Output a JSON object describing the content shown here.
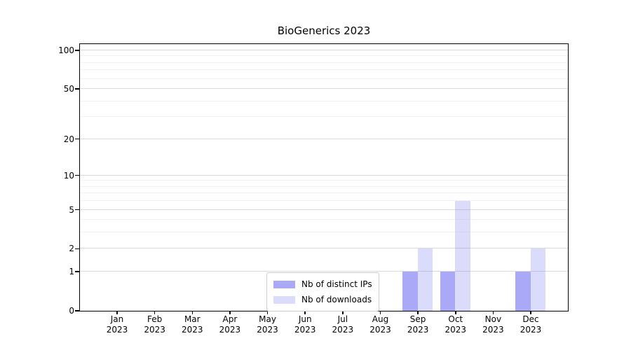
{
  "title": "BioGenerics 2023",
  "chart_data": {
    "type": "bar",
    "title": "BioGenerics 2023",
    "categories": [
      "Jan",
      "Feb",
      "Mar",
      "Apr",
      "May",
      "Jun",
      "Jul",
      "Aug",
      "Sep",
      "Oct",
      "Nov",
      "Dec"
    ],
    "year_label": "2023",
    "series": [
      {
        "name": "Nb of distinct IPs",
        "color": "rgba(102,102,240,0.56)",
        "values": [
          0,
          0,
          0,
          0,
          0,
          0,
          0,
          0,
          1,
          1,
          0,
          1
        ]
      },
      {
        "name": "Nb of downloads",
        "color": "rgba(102,102,240,0.235)",
        "values": [
          0,
          0,
          0,
          0,
          0,
          0,
          0,
          0,
          2,
          6,
          0,
          2
        ]
      }
    ],
    "y_ticks": [
      0,
      1,
      2,
      5,
      10,
      20,
      50,
      100
    ],
    "y_minor_gridlines": [
      3,
      4,
      6,
      7,
      8,
      9,
      30,
      40,
      60,
      70,
      80,
      90
    ],
    "y_scale": "log1p",
    "ylim": [
      0,
      112
    ],
    "xlabel": "",
    "ylabel": "",
    "grid": true,
    "legend_position": "inside-bottom-center",
    "colors": {
      "bar_distinct_ips": "#a9a9f7",
      "bar_downloads": "#dbdbf8",
      "major_grid": "#d9d9d9",
      "minor_grid": "#f1f1f4",
      "spine": "#000000",
      "text": "#000000",
      "legend_border": "#cccccc"
    }
  }
}
